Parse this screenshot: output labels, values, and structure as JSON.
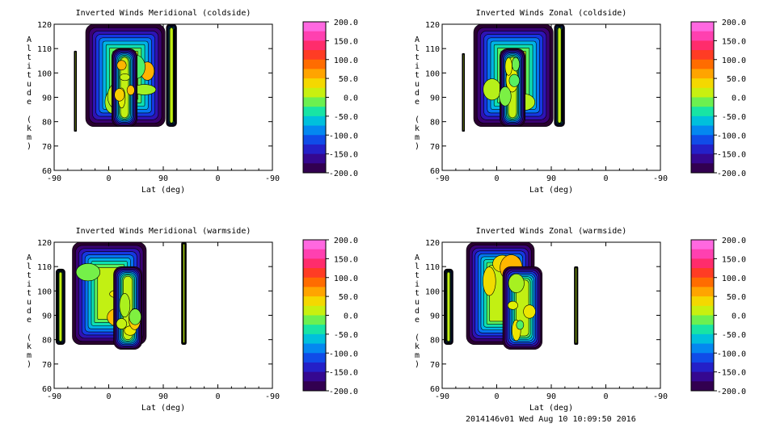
{
  "footer_text": "2014146v01 Wed Aug 10 10:09:50 2016",
  "chart_data": [
    {
      "type": "heatmap",
      "title": "Inverted Winds Meridional (coldside)",
      "xlabel": "Lat (deg)",
      "ylabel": "Altitude (km)",
      "x_ticks": [
        "-90",
        "0",
        "90",
        "0",
        "-90"
      ],
      "y_ticks": [
        "60",
        "70",
        "80",
        "90",
        "100",
        "110",
        "120"
      ],
      "ylim": [
        60,
        120
      ],
      "colorbar": {
        "range": [
          -200,
          200
        ],
        "tick_labels": [
          "200.0",
          "150.0",
          "100.0",
          "50.0",
          "0.0",
          "-50.0",
          "-100.0",
          "-150.0",
          "-200.0"
        ]
      },
      "filled_regions": [
        {
          "xrange": [
            -57,
            -53
          ],
          "yrange": [
            76,
            109
          ]
        },
        {
          "xrange": [
            -38,
            93
          ],
          "yrange": [
            78,
            120
          ]
        },
        {
          "xrange": [
            95,
            112
          ],
          "yrange": [
            78,
            120
          ]
        },
        {
          "xrange": [
            5,
            47
          ],
          "yrange": [
            78,
            110
          ]
        }
      ]
    },
    {
      "type": "heatmap",
      "title": "Inverted Winds Zonal (coldside)",
      "xlabel": "Lat (deg)",
      "ylabel": "Altitude (km)",
      "x_ticks": [
        "-90",
        "0",
        "90",
        "0",
        "-90"
      ],
      "y_ticks": [
        "60",
        "70",
        "80",
        "90",
        "100",
        "110",
        "120"
      ],
      "ylim": [
        60,
        120
      ],
      "colorbar": {
        "range": [
          -200,
          200
        ],
        "tick_labels": [
          "200.0",
          "150.0",
          "100.0",
          "50.0",
          "0.0",
          "-50.0",
          "-100.0",
          "-150.0",
          "-200.0"
        ]
      },
      "filled_regions": [
        {
          "xrange": [
            -57,
            -53
          ],
          "yrange": [
            76,
            108
          ]
        },
        {
          "xrange": [
            -38,
            93
          ],
          "yrange": [
            78,
            120
          ]
        },
        {
          "xrange": [
            95,
            112
          ],
          "yrange": [
            78,
            120
          ]
        },
        {
          "xrange": [
            5,
            47
          ],
          "yrange": [
            78,
            110
          ]
        }
      ]
    },
    {
      "type": "heatmap",
      "title": "Inverted Winds Meridional (warmside)",
      "xlabel": "Lat (deg)",
      "ylabel": "Altitude (km)",
      "x_ticks": [
        "-90",
        "0",
        "90",
        "0",
        "-90"
      ],
      "y_ticks": [
        "60",
        "70",
        "80",
        "90",
        "100",
        "110",
        "120"
      ],
      "ylim": [
        60,
        120
      ],
      "colorbar": {
        "range": [
          -200,
          200
        ],
        "tick_labels": [
          "200.0",
          "150.0",
          "100.0",
          "50.0",
          "0.0",
          "-50.0",
          "-100.0",
          "-150.0",
          "-200.0"
        ]
      },
      "filled_regions": [
        {
          "xrange": [
            -87,
            -72
          ],
          "yrange": [
            78,
            109
          ]
        },
        {
          "xrange": [
            -60,
            62
          ],
          "yrange": [
            78,
            120
          ]
        },
        {
          "xrange": [
            120,
            128
          ],
          "yrange": [
            78,
            120
          ]
        },
        {
          "xrange": [
            8,
            55
          ],
          "yrange": [
            76,
            110
          ]
        }
      ]
    },
    {
      "type": "heatmap",
      "title": "Inverted Winds Zonal (warmside)",
      "xlabel": "Lat (deg)",
      "ylabel": "Altitude (km)",
      "x_ticks": [
        "-90",
        "0",
        "90",
        "0",
        "-90"
      ],
      "y_ticks": [
        "60",
        "70",
        "80",
        "90",
        "100",
        "110",
        "120"
      ],
      "ylim": [
        60,
        120
      ],
      "colorbar": {
        "range": [
          -200,
          200
        ],
        "tick_labels": [
          "200.0",
          "150.0",
          "100.0",
          "50.0",
          "0.0",
          "-50.0",
          "-100.0",
          "-150.0",
          "-200.0"
        ]
      },
      "filled_regions": [
        {
          "xrange": [
            -87,
            -72
          ],
          "yrange": [
            78,
            109
          ]
        },
        {
          "xrange": [
            -50,
            62
          ],
          "yrange": [
            78,
            120
          ]
        },
        {
          "xrange": [
            128,
            134
          ],
          "yrange": [
            78,
            110
          ]
        },
        {
          "xrange": [
            10,
            75
          ],
          "yrange": [
            76,
            110
          ]
        }
      ]
    }
  ]
}
